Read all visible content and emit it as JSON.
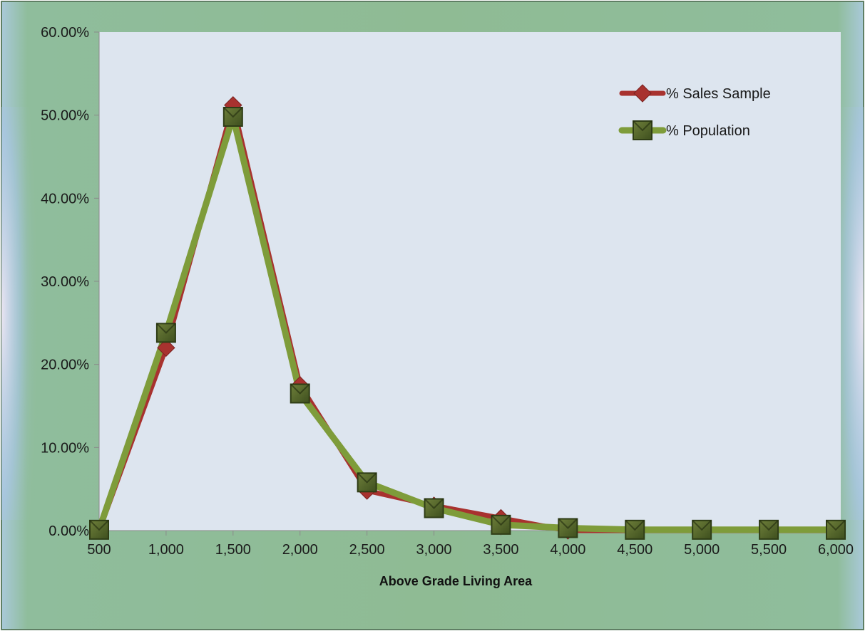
{
  "chart_data": {
    "type": "line",
    "title": "",
    "xlabel": "Above Grade Living Area",
    "ylabel": "",
    "categories": [
      "500",
      "1,000",
      "1,500",
      "2,000",
      "2,500",
      "3,000",
      "3,500",
      "4,000",
      "4,500",
      "5,000",
      "5,500",
      "6,000"
    ],
    "x": [
      500,
      1000,
      1500,
      2000,
      2500,
      3000,
      3500,
      4000,
      4500,
      5000,
      5500,
      6000
    ],
    "xlim": [
      500,
      6000
    ],
    "ylim": [
      0,
      0.6
    ],
    "yticks": [
      0,
      0.1,
      0.2,
      0.3,
      0.4,
      0.5,
      0.6
    ],
    "ytick_labels": [
      "0.00%",
      "10.00%",
      "20.00%",
      "30.00%",
      "40.00%",
      "50.00%",
      "60.00%"
    ],
    "grid": false,
    "legend_position": "top-right",
    "series": [
      {
        "name": "% Sales Sample",
        "color": "#a8322f",
        "marker": "diamond",
        "values": [
          0.0,
          0.22,
          0.512,
          0.175,
          0.048,
          0.03,
          0.015,
          0.0,
          0.0,
          0.0,
          0.0,
          0.0
        ]
      },
      {
        "name": "% Population",
        "color": "#7e9c3a",
        "marker": "square",
        "values": [
          0.001,
          0.238,
          0.498,
          0.165,
          0.058,
          0.027,
          0.007,
          0.003,
          0.001,
          0.001,
          0.001,
          0.001
        ]
      }
    ]
  }
}
